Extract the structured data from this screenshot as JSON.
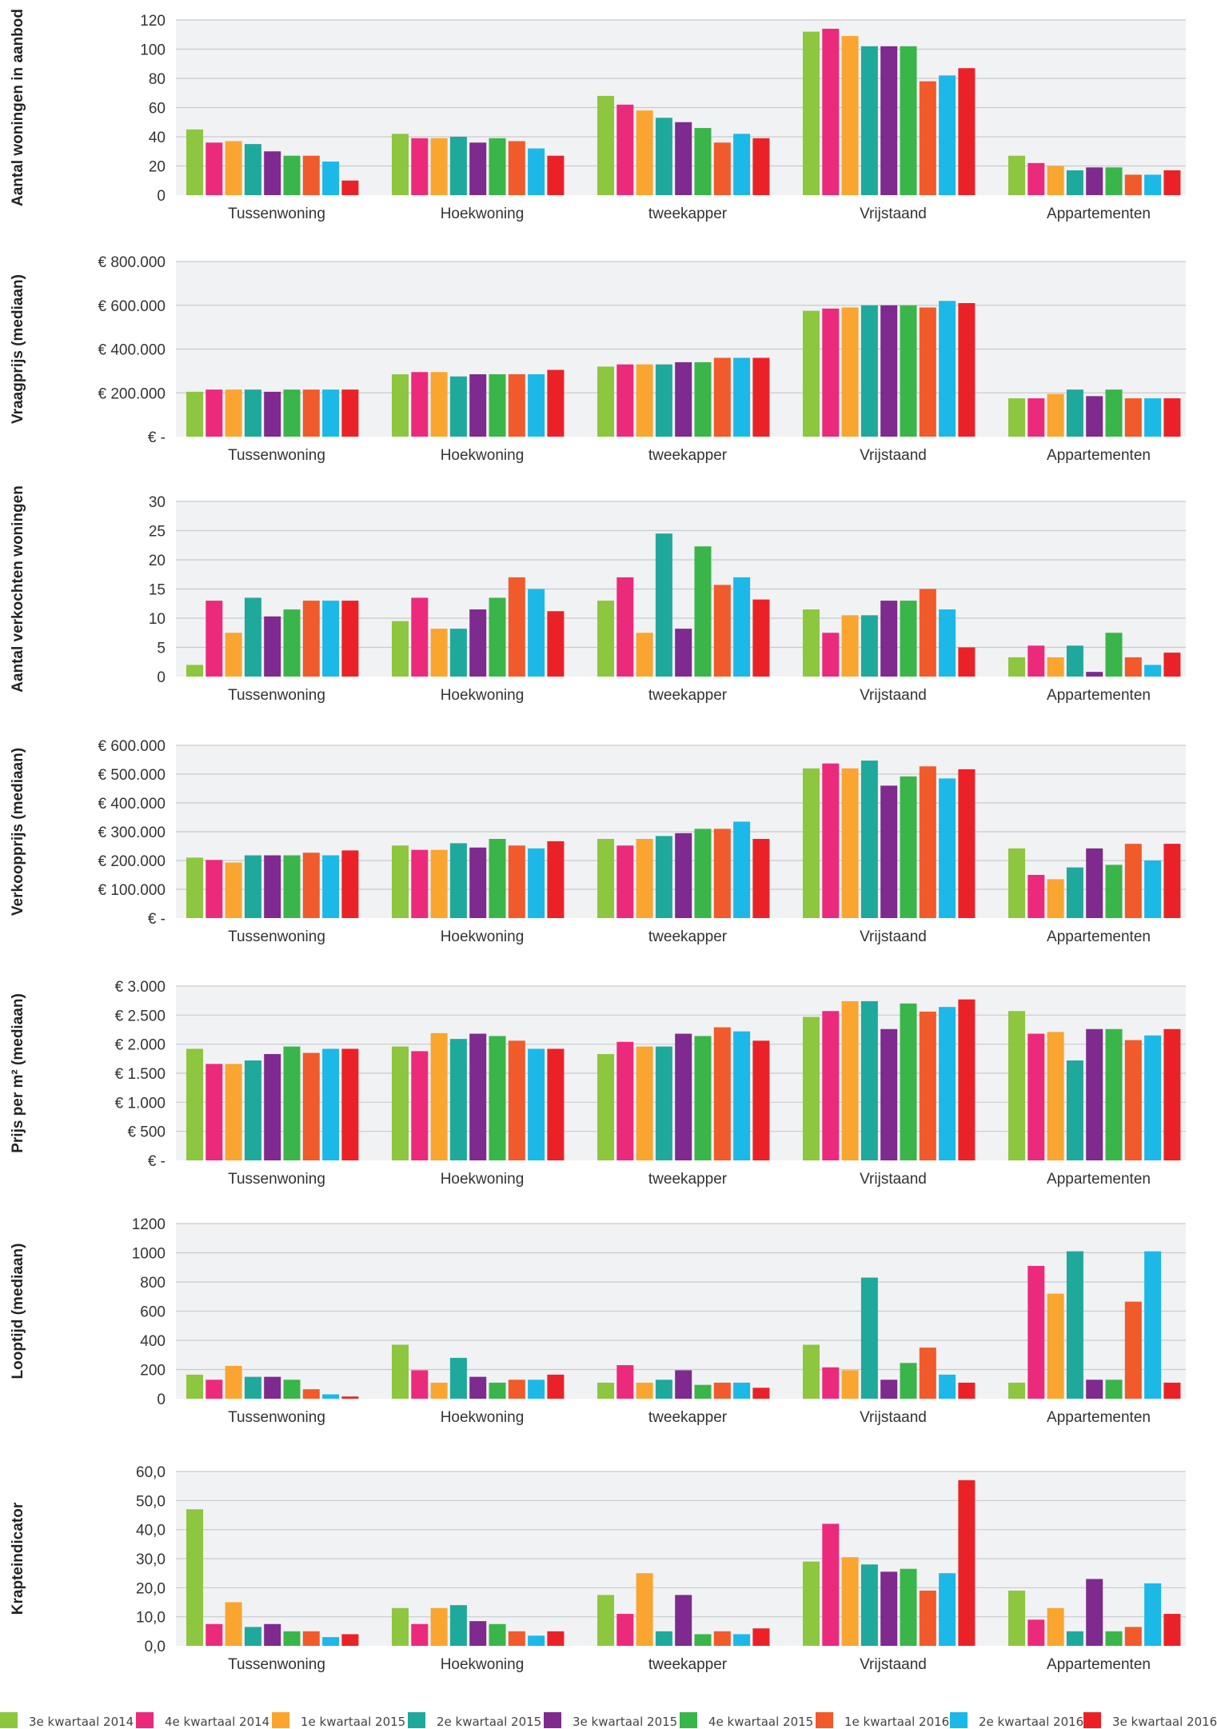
{
  "colors": [
    "#8dc63f",
    "#ec2a7b",
    "#f9a530",
    "#1fa99c",
    "#7e2a8e",
    "#39b54a",
    "#f15a2b",
    "#1cb8e8",
    "#ea2227"
  ],
  "legend": [
    "3e kwartaal 2014",
    "4e kwartaal 2014",
    "1e kwartaal 2015",
    "2e kwartaal 2015",
    "3e kwartaal 2015",
    "4e kwartaal 2015",
    "1e kwartaal 2016",
    "2e kwartaal 2016",
    "3e kwartaal 2016"
  ],
  "chart_data": [
    {
      "type": "bar",
      "ylabel": "Aantal woningen in aanbod",
      "categories": [
        "Tussenwoning",
        "Hoekwoning",
        "tweekapper",
        "Vrijstaand",
        "Appartementen"
      ],
      "yticks": [
        "0",
        "20",
        "40",
        "60",
        "80",
        "100",
        "120"
      ],
      "ylim": [
        0,
        120
      ],
      "grid": true,
      "series": [
        {
          "name": "3e kwartaal 2014",
          "values": [
            45,
            42,
            68,
            112,
            27
          ]
        },
        {
          "name": "4e kwartaal 2014",
          "values": [
            36,
            39,
            62,
            114,
            22
          ]
        },
        {
          "name": "1e kwartaal 2015",
          "values": [
            37,
            39,
            58,
            109,
            20
          ]
        },
        {
          "name": "2e kwartaal 2015",
          "values": [
            35,
            40,
            53,
            102,
            17
          ]
        },
        {
          "name": "3e kwartaal 2015",
          "values": [
            30,
            36,
            50,
            102,
            19
          ]
        },
        {
          "name": "4e kwartaal 2015",
          "values": [
            27,
            39,
            46,
            102,
            19
          ]
        },
        {
          "name": "1e kwartaal 2016",
          "values": [
            27,
            37,
            36,
            78,
            14
          ]
        },
        {
          "name": "2e kwartaal 2016",
          "values": [
            23,
            32,
            42,
            82,
            14
          ]
        },
        {
          "name": "3e kwartaal 2016",
          "values": [
            10,
            27,
            39,
            87,
            17
          ]
        }
      ]
    },
    {
      "type": "bar",
      "ylabel": "Vraagprijs (mediaan)",
      "categories": [
        "Tussenwoning",
        "Hoekwoning",
        "tweekapper",
        "Vrijstaand",
        "Appartementen"
      ],
      "yticks": [
        "€ -",
        "€ 200.000",
        "€ 400.000",
        "€ 600.000",
        "€ 800.000"
      ],
      "ylim": [
        0,
        800000
      ],
      "grid": true,
      "series": [
        {
          "name": "3e kwartaal 2014",
          "values": [
            205000,
            285000,
            320000,
            575000,
            175000
          ]
        },
        {
          "name": "4e kwartaal 2014",
          "values": [
            215000,
            295000,
            330000,
            585000,
            175000
          ]
        },
        {
          "name": "1e kwartaal 2015",
          "values": [
            215000,
            295000,
            330000,
            590000,
            195000
          ]
        },
        {
          "name": "2e kwartaal 2015",
          "values": [
            215000,
            275000,
            330000,
            600000,
            215000
          ]
        },
        {
          "name": "3e kwartaal 2015",
          "values": [
            205000,
            285000,
            340000,
            600000,
            185000
          ]
        },
        {
          "name": "4e kwartaal 2015",
          "values": [
            215000,
            285000,
            340000,
            600000,
            215000
          ]
        },
        {
          "name": "1e kwartaal 2016",
          "values": [
            215000,
            285000,
            360000,
            590000,
            175000
          ]
        },
        {
          "name": "2e kwartaal 2016",
          "values": [
            215000,
            285000,
            360000,
            620000,
            175000
          ]
        },
        {
          "name": "3e kwartaal 2016",
          "values": [
            215000,
            305000,
            360000,
            610000,
            175000
          ]
        }
      ]
    },
    {
      "type": "bar",
      "ylabel": "Aantal verkochten woningen",
      "categories": [
        "Tussenwoning",
        "Hoekwoning",
        "tweekapper",
        "Vrijstaand",
        "Appartementen"
      ],
      "yticks": [
        "0",
        "5",
        "10",
        "15",
        "20",
        "25",
        "30"
      ],
      "ylim": [
        0,
        30
      ],
      "grid": true,
      "series": [
        {
          "name": "3e kwartaal 2014",
          "values": [
            2,
            9.5,
            13,
            11.5,
            3.3
          ]
        },
        {
          "name": "4e kwartaal 2014",
          "values": [
            13,
            13.5,
            17,
            7.5,
            5.3
          ]
        },
        {
          "name": "1e kwartaal 2015",
          "values": [
            7.5,
            8.2,
            7.5,
            10.5,
            3.3
          ]
        },
        {
          "name": "2e kwartaal 2015",
          "values": [
            13.5,
            8.2,
            24.5,
            10.5,
            5.3
          ]
        },
        {
          "name": "3e kwartaal 2015",
          "values": [
            10.3,
            11.5,
            8.2,
            13,
            0.8
          ]
        },
        {
          "name": "4e kwartaal 2015",
          "values": [
            11.5,
            13.5,
            22.3,
            13,
            7.5
          ]
        },
        {
          "name": "1e kwartaal 2016",
          "values": [
            13,
            17,
            15.7,
            15,
            3.3
          ]
        },
        {
          "name": "2e kwartaal 2016",
          "values": [
            13,
            15,
            17,
            11.5,
            2
          ]
        },
        {
          "name": "3e kwartaal 2016",
          "values": [
            13,
            11.2,
            13.2,
            5,
            4.1
          ]
        }
      ]
    },
    {
      "type": "bar",
      "ylabel": "Verkoopprijs (mediaan)",
      "categories": [
        "Tussenwoning",
        "Hoekwoning",
        "tweekapper",
        "Vrijstaand",
        "Appartementen"
      ],
      "yticks": [
        "€ -",
        "€ 100.000",
        "€ 200.000",
        "€ 300.000",
        "€ 400.000",
        "€ 500.000",
        "€ 600.000"
      ],
      "ylim": [
        0,
        600000
      ],
      "grid": true,
      "series": [
        {
          "name": "3e kwartaal 2014",
          "values": [
            210000,
            252000,
            275000,
            520000,
            242000
          ]
        },
        {
          "name": "4e kwartaal 2014",
          "values": [
            202000,
            237000,
            252000,
            537000,
            150000
          ]
        },
        {
          "name": "1e kwartaal 2015",
          "values": [
            193000,
            237000,
            275000,
            520000,
            135000
          ]
        },
        {
          "name": "2e kwartaal 2015",
          "values": [
            218000,
            260000,
            285000,
            547000,
            176000
          ]
        },
        {
          "name": "3e kwartaal 2015",
          "values": [
            218000,
            245000,
            295000,
            460000,
            242000
          ]
        },
        {
          "name": "4e kwartaal 2015",
          "values": [
            218000,
            275000,
            310000,
            492000,
            185000
          ]
        },
        {
          "name": "1e kwartaal 2016",
          "values": [
            227000,
            252000,
            310000,
            527000,
            258000
          ]
        },
        {
          "name": "2e kwartaal 2016",
          "values": [
            218000,
            242000,
            335000,
            485000,
            200000
          ]
        },
        {
          "name": "3e kwartaal 2016",
          "values": [
            235000,
            267000,
            275000,
            517000,
            258000
          ]
        }
      ]
    },
    {
      "type": "bar",
      "ylabel": "Prijs per m² (mediaan)",
      "categories": [
        "Tussenwoning",
        "Hoekwoning",
        "tweekapper",
        "Vrijstaand",
        "Appartementen"
      ],
      "yticks": [
        "€ -",
        "€ 500",
        "€ 1.000",
        "€ 1.500",
        "€ 2.000",
        "€ 2.500",
        "€ 3.000"
      ],
      "ylim": [
        0,
        3000
      ],
      "grid": true,
      "series": [
        {
          "name": "3e kwartaal 2014",
          "values": [
            1920,
            1960,
            1830,
            2470,
            2570
          ]
        },
        {
          "name": "4e kwartaal 2014",
          "values": [
            1660,
            1880,
            2040,
            2570,
            2180
          ]
        },
        {
          "name": "1e kwartaal 2015",
          "values": [
            1660,
            2190,
            1960,
            2740,
            2210
          ]
        },
        {
          "name": "2e kwartaal 2015",
          "values": [
            1720,
            2090,
            1960,
            2740,
            1720
          ]
        },
        {
          "name": "3e kwartaal 2015",
          "values": [
            1830,
            2180,
            2180,
            2260,
            2260
          ]
        },
        {
          "name": "4e kwartaal 2015",
          "values": [
            1960,
            2140,
            2140,
            2700,
            2260
          ]
        },
        {
          "name": "1e kwartaal 2016",
          "values": [
            1850,
            2060,
            2290,
            2560,
            2070
          ]
        },
        {
          "name": "2e kwartaal 2016",
          "values": [
            1920,
            1920,
            2220,
            2640,
            2150
          ]
        },
        {
          "name": "3e kwartaal 2016",
          "values": [
            1920,
            1920,
            2060,
            2770,
            2260
          ]
        }
      ]
    },
    {
      "type": "bar",
      "ylabel": "Looptijd (mediaan)",
      "categories": [
        "Tussenwoning",
        "Hoekwoning",
        "tweekapper",
        "Vrijstaand",
        "Appartementen"
      ],
      "yticks": [
        "0",
        "200",
        "400",
        "600",
        "800",
        "1000",
        "1200"
      ],
      "ylim": [
        0,
        1200
      ],
      "grid": true,
      "series": [
        {
          "name": "3e kwartaal 2014",
          "values": [
            165,
            370,
            110,
            370,
            110
          ]
        },
        {
          "name": "4e kwartaal 2014",
          "values": [
            130,
            195,
            230,
            215,
            910
          ]
        },
        {
          "name": "1e kwartaal 2015",
          "values": [
            225,
            110,
            110,
            195,
            720
          ]
        },
        {
          "name": "2e kwartaal 2015",
          "values": [
            150,
            280,
            130,
            830,
            1010
          ]
        },
        {
          "name": "3e kwartaal 2015",
          "values": [
            150,
            150,
            195,
            130,
            130
          ]
        },
        {
          "name": "4e kwartaal 2015",
          "values": [
            130,
            110,
            95,
            245,
            130
          ]
        },
        {
          "name": "1e kwartaal 2016",
          "values": [
            65,
            130,
            110,
            350,
            665
          ]
        },
        {
          "name": "2e kwartaal 2016",
          "values": [
            30,
            130,
            110,
            165,
            1010
          ]
        },
        {
          "name": "3e kwartaal 2016",
          "values": [
            15,
            165,
            75,
            110,
            110
          ]
        }
      ]
    },
    {
      "type": "bar",
      "ylabel": "Krapteindicator",
      "categories": [
        "Tussenwoning",
        "Hoekwoning",
        "tweekapper",
        "Vrijstaand",
        "Appartementen"
      ],
      "yticks": [
        "0,0",
        "10,0",
        "20,0",
        "30,0",
        "40,0",
        "50,0",
        "60,0"
      ],
      "ylim": [
        0,
        60
      ],
      "grid": true,
      "series": [
        {
          "name": "3e kwartaal 2014",
          "values": [
            47,
            13,
            17.5,
            29,
            19
          ]
        },
        {
          "name": "4e kwartaal 2014",
          "values": [
            7.5,
            7.5,
            11,
            42,
            9
          ]
        },
        {
          "name": "1e kwartaal 2015",
          "values": [
            15,
            13,
            25,
            30.5,
            13
          ]
        },
        {
          "name": "2e kwartaal 2015",
          "values": [
            6.5,
            14,
            5,
            28,
            5
          ]
        },
        {
          "name": "3e kwartaal 2015",
          "values": [
            7.5,
            8.5,
            17.5,
            25.5,
            23
          ]
        },
        {
          "name": "4e kwartaal 2015",
          "values": [
            5,
            7.5,
            4,
            26.5,
            5
          ]
        },
        {
          "name": "1e kwartaal 2016",
          "values": [
            5,
            5,
            5,
            19,
            6.5
          ]
        },
        {
          "name": "2e kwartaal 2016",
          "values": [
            3,
            3.5,
            4,
            25,
            21.5
          ]
        },
        {
          "name": "3e kwartaal 2016",
          "values": [
            4,
            5,
            6,
            57,
            11
          ]
        }
      ]
    }
  ]
}
